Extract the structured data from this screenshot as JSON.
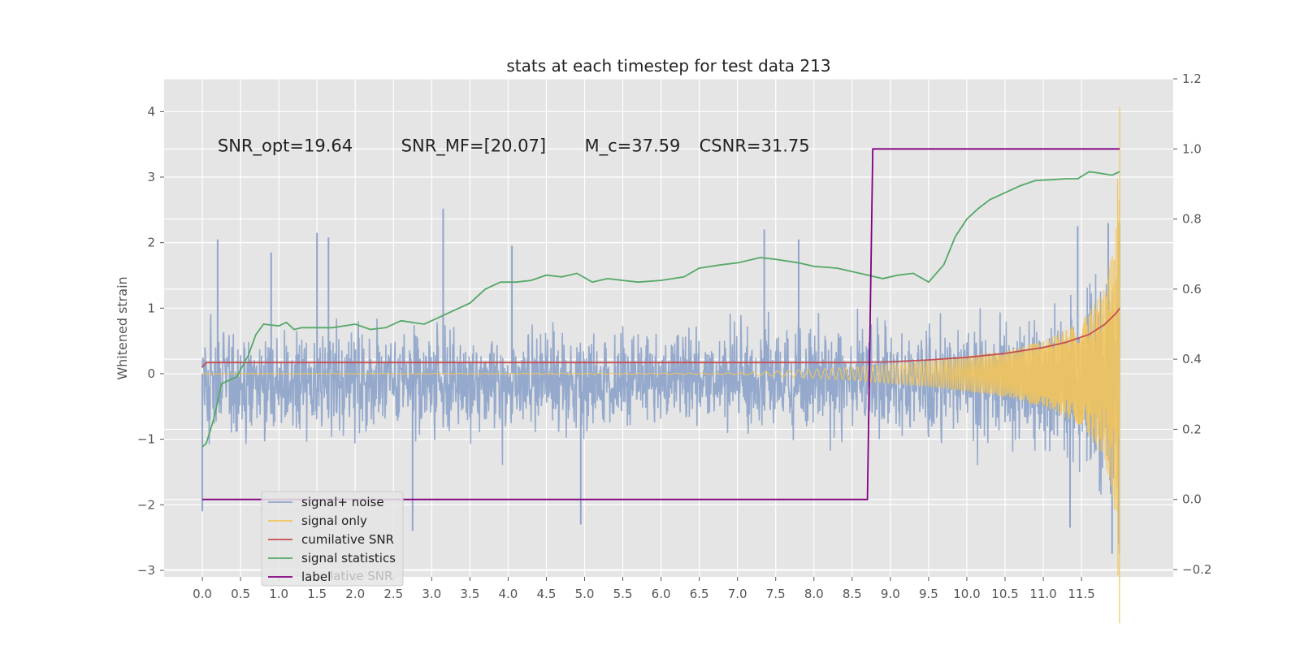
{
  "chart_data": {
    "type": "line",
    "title": "stats at each timestep for test data 213",
    "ylabel": "Whitened strain",
    "xlabel": "",
    "xlim": [
      -0.5,
      12.7
    ],
    "ylim": [
      -3.1,
      4.5
    ],
    "y2lim": [
      -0.2,
      1.2
    ],
    "x_ticks": [
      0.0,
      0.5,
      1.0,
      1.5,
      2.0,
      2.5,
      3.0,
      3.5,
      4.0,
      4.5,
      5.0,
      5.5,
      6.0,
      6.5,
      7.0,
      7.5,
      8.0,
      8.5,
      9.0,
      9.5,
      10.0,
      10.5,
      11.0,
      11.5
    ],
    "x_tick_labels": [
      "0.0",
      "0.5",
      "1.0",
      "1.5",
      "2.0",
      "2.5",
      "3.0",
      "3.5",
      "4.0",
      "4.5",
      "5.0",
      "5.5",
      "6.0",
      "6.5",
      "7.0",
      "7.5",
      "8.0",
      "8.5",
      "9.0",
      "9.5",
      "10.0",
      "10.5",
      "11.0",
      "11.5"
    ],
    "y_ticks": [
      -3,
      -2,
      -1,
      0,
      1,
      2,
      3,
      4
    ],
    "y_tick_labels": [
      "−3",
      "−2",
      "−1",
      "0",
      "1",
      "2",
      "3",
      "4"
    ],
    "y2_ticks": [
      -0.2,
      0.0,
      0.2,
      0.4,
      0.6,
      0.8,
      1.0,
      1.2
    ],
    "y2_tick_labels": [
      "−0.2",
      "0.0",
      "0.2",
      "0.4",
      "0.6",
      "0.8",
      "1.0",
      "1.2"
    ],
    "grid": true,
    "legend_position": "bottom-left",
    "annotations": [
      {
        "text": "SNR_opt=19.64",
        "x": 0.2,
        "y": 3.48
      },
      {
        "text": "SNR_MF=[20.07]",
        "x": 2.6,
        "y": 3.48
      },
      {
        "text": "M_c=37.59",
        "x": 5.0,
        "y": 3.48
      },
      {
        "text": "CSNR=31.75",
        "x": 6.5,
        "y": 3.48
      }
    ],
    "series": [
      {
        "name": "signal+ noise",
        "color": "#8fa5ca",
        "axis": "left",
        "kind": "noise",
        "x_range": [
          0.0,
          12.0
        ],
        "notable_peaks": [
          {
            "x": 0.2,
            "y": 2.05
          },
          {
            "x": 0.9,
            "y": 1.85
          },
          {
            "x": 1.5,
            "y": 2.15
          },
          {
            "x": 1.65,
            "y": 2.08
          },
          {
            "x": 3.15,
            "y": 2.52
          },
          {
            "x": 4.05,
            "y": 1.95
          },
          {
            "x": 7.35,
            "y": 2.2
          },
          {
            "x": 7.8,
            "y": 2.05
          },
          {
            "x": 11.45,
            "y": 2.25
          },
          {
            "x": 11.85,
            "y": 2.3
          },
          {
            "x": 2.75,
            "y": -2.4
          },
          {
            "x": 4.95,
            "y": -2.3
          },
          {
            "x": 11.35,
            "y": -2.35
          },
          {
            "x": 11.9,
            "y": -2.75
          },
          {
            "x": 0.0,
            "y": -2.1
          }
        ]
      },
      {
        "name": "signal only",
        "color": "#f2c45c",
        "axis": "left",
        "kind": "chirp",
        "x_range": [
          0.0,
          12.0
        ],
        "envelope": [
          {
            "x": 0.0,
            "y": 0.0
          },
          {
            "x": 7.0,
            "y": 0.01
          },
          {
            "x": 8.5,
            "y": 0.1
          },
          {
            "x": 9.5,
            "y": 0.2
          },
          {
            "x": 10.5,
            "y": 0.35
          },
          {
            "x": 11.0,
            "y": 0.5
          },
          {
            "x": 11.5,
            "y": 0.8
          },
          {
            "x": 11.8,
            "y": 1.3
          },
          {
            "x": 11.95,
            "y": 2.2
          },
          {
            "x": 12.0,
            "y": 4.15
          }
        ]
      },
      {
        "name": "cumilative SNR",
        "color": "#c44e52",
        "axis": "left",
        "points": [
          {
            "x": 0.0,
            "y": 0.1
          },
          {
            "x": 0.05,
            "y": 0.17
          },
          {
            "x": 1.0,
            "y": 0.17
          },
          {
            "x": 5.0,
            "y": 0.17
          },
          {
            "x": 8.5,
            "y": 0.17
          },
          {
            "x": 9.0,
            "y": 0.18
          },
          {
            "x": 9.5,
            "y": 0.21
          },
          {
            "x": 10.0,
            "y": 0.25
          },
          {
            "x": 10.5,
            "y": 0.31
          },
          {
            "x": 11.0,
            "y": 0.4
          },
          {
            "x": 11.3,
            "y": 0.48
          },
          {
            "x": 11.6,
            "y": 0.6
          },
          {
            "x": 11.8,
            "y": 0.75
          },
          {
            "x": 11.95,
            "y": 0.92
          },
          {
            "x": 12.0,
            "y": 1.0
          }
        ]
      },
      {
        "name": "signal statistics",
        "color": "#55a868",
        "axis": "right",
        "points": [
          {
            "x": 0.0,
            "y": 0.15
          },
          {
            "x": 0.05,
            "y": 0.16
          },
          {
            "x": 0.15,
            "y": 0.23
          },
          {
            "x": 0.25,
            "y": 0.33
          },
          {
            "x": 0.35,
            "y": 0.34
          },
          {
            "x": 0.45,
            "y": 0.35
          },
          {
            "x": 0.6,
            "y": 0.41
          },
          {
            "x": 0.7,
            "y": 0.47
          },
          {
            "x": 0.8,
            "y": 0.5
          },
          {
            "x": 1.0,
            "y": 0.495
          },
          {
            "x": 1.1,
            "y": 0.505
          },
          {
            "x": 1.2,
            "y": 0.485
          },
          {
            "x": 1.3,
            "y": 0.49
          },
          {
            "x": 1.5,
            "y": 0.49
          },
          {
            "x": 1.7,
            "y": 0.49
          },
          {
            "x": 2.0,
            "y": 0.5
          },
          {
            "x": 2.2,
            "y": 0.485
          },
          {
            "x": 2.4,
            "y": 0.49
          },
          {
            "x": 2.6,
            "y": 0.51
          },
          {
            "x": 2.9,
            "y": 0.5
          },
          {
            "x": 3.1,
            "y": 0.52
          },
          {
            "x": 3.3,
            "y": 0.54
          },
          {
            "x": 3.5,
            "y": 0.56
          },
          {
            "x": 3.7,
            "y": 0.6
          },
          {
            "x": 3.9,
            "y": 0.62
          },
          {
            "x": 4.1,
            "y": 0.62
          },
          {
            "x": 4.3,
            "y": 0.625
          },
          {
            "x": 4.5,
            "y": 0.64
          },
          {
            "x": 4.7,
            "y": 0.635
          },
          {
            "x": 4.9,
            "y": 0.645
          },
          {
            "x": 5.1,
            "y": 0.62
          },
          {
            "x": 5.3,
            "y": 0.63
          },
          {
            "x": 5.5,
            "y": 0.625
          },
          {
            "x": 5.7,
            "y": 0.62
          },
          {
            "x": 6.0,
            "y": 0.625
          },
          {
            "x": 6.3,
            "y": 0.635
          },
          {
            "x": 6.5,
            "y": 0.66
          },
          {
            "x": 6.8,
            "y": 0.67
          },
          {
            "x": 7.0,
            "y": 0.675
          },
          {
            "x": 7.3,
            "y": 0.69
          },
          {
            "x": 7.5,
            "y": 0.685
          },
          {
            "x": 7.8,
            "y": 0.675
          },
          {
            "x": 8.0,
            "y": 0.665
          },
          {
            "x": 8.3,
            "y": 0.66
          },
          {
            "x": 8.6,
            "y": 0.645
          },
          {
            "x": 8.9,
            "y": 0.63
          },
          {
            "x": 9.1,
            "y": 0.64
          },
          {
            "x": 9.3,
            "y": 0.645
          },
          {
            "x": 9.5,
            "y": 0.62
          },
          {
            "x": 9.7,
            "y": 0.67
          },
          {
            "x": 9.85,
            "y": 0.75
          },
          {
            "x": 10.0,
            "y": 0.8
          },
          {
            "x": 10.15,
            "y": 0.83
          },
          {
            "x": 10.3,
            "y": 0.855
          },
          {
            "x": 10.5,
            "y": 0.875
          },
          {
            "x": 10.7,
            "y": 0.895
          },
          {
            "x": 10.9,
            "y": 0.91
          },
          {
            "x": 11.1,
            "y": 0.912
          },
          {
            "x": 11.3,
            "y": 0.915
          },
          {
            "x": 11.45,
            "y": 0.915
          },
          {
            "x": 11.6,
            "y": 0.935
          },
          {
            "x": 11.7,
            "y": 0.932
          },
          {
            "x": 11.9,
            "y": 0.925
          },
          {
            "x": 12.0,
            "y": 0.935
          }
        ]
      },
      {
        "name": "label",
        "color": "#800080",
        "axis": "right",
        "points": [
          {
            "x": 0.0,
            "y": 0.0
          },
          {
            "x": 8.7,
            "y": 0.0
          },
          {
            "x": 8.77,
            "y": 1.0
          },
          {
            "x": 12.0,
            "y": 1.0
          }
        ]
      }
    ],
    "legend_overlap_text": "lative SNR"
  }
}
